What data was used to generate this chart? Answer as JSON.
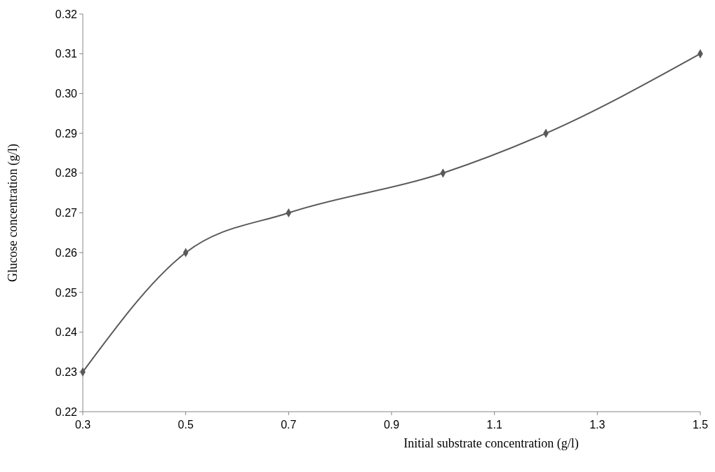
{
  "chart_data": {
    "type": "line",
    "xlabel": "Initial substrate concentration (g/l)",
    "ylabel": "Glucose concentration (g/l)",
    "x": [
      0.3,
      0.5,
      0.7,
      1.0,
      1.2,
      1.5
    ],
    "series": [
      {
        "color": "#595959",
        "values": [
          0.23,
          0.26,
          0.27,
          0.28,
          0.29,
          0.31
        ]
      }
    ],
    "xlim": [
      0.3,
      1.5
    ],
    "xticks": [
      0.3,
      0.5,
      0.7,
      0.9,
      1.1,
      1.3,
      1.5
    ],
    "ylim": [
      0.22,
      0.32
    ],
    "yticks": [
      0.22,
      0.23,
      0.24,
      0.25,
      0.26,
      0.27,
      0.28,
      0.29,
      {
        "value": 0.3,
        "label": "0.30"
      },
      0.31,
      0.32
    ],
    "marker": "diamond",
    "line_style": "solid",
    "grid": false
  }
}
